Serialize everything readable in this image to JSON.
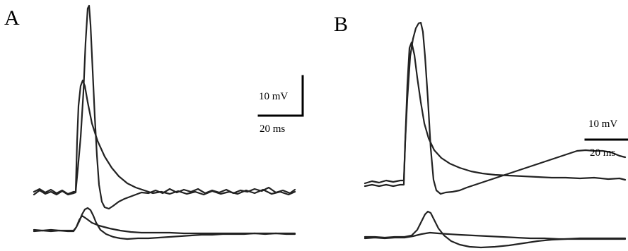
{
  "figure": {
    "panels": [
      {
        "label": "A",
        "scalebar": {
          "voltage_label": "10 mV",
          "time_label": "20 ms"
        }
      },
      {
        "label": "B",
        "scalebar": {
          "voltage_label": "10 mV",
          "time_label": "20 ms"
        }
      }
    ]
  }
}
